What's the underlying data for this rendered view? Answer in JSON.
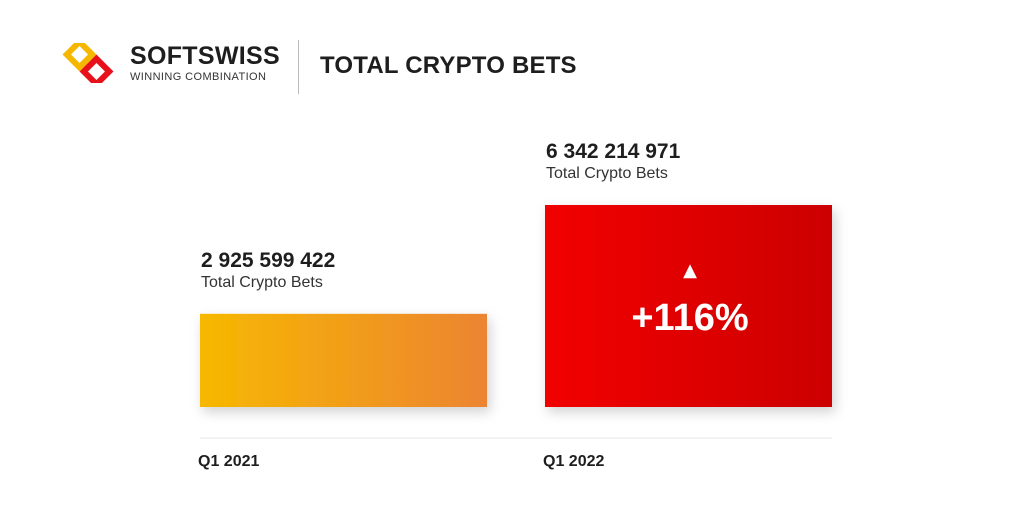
{
  "brand": {
    "name": "SOFTSWISS",
    "tagline": "WINNING COMBINATION"
  },
  "header": {
    "title": "TOTAL CRYPTO BETS"
  },
  "chart_data": {
    "type": "bar",
    "categories": [
      "Q1 2021",
      "Q1 2022"
    ],
    "values": [
      2925599422,
      6342214971
    ],
    "value_labels": [
      "2 925 599 422",
      "6 342 214 971"
    ],
    "value_sublabels": [
      "Total Crypto Bets",
      "Total Crypto Bets"
    ],
    "growth_label": "+116%",
    "ylim": [
      0,
      6342214971
    ],
    "bar_colors": [
      [
        "#f7b800",
        "#ec8432"
      ],
      [
        "#f20000",
        "#cc0000"
      ]
    ]
  }
}
